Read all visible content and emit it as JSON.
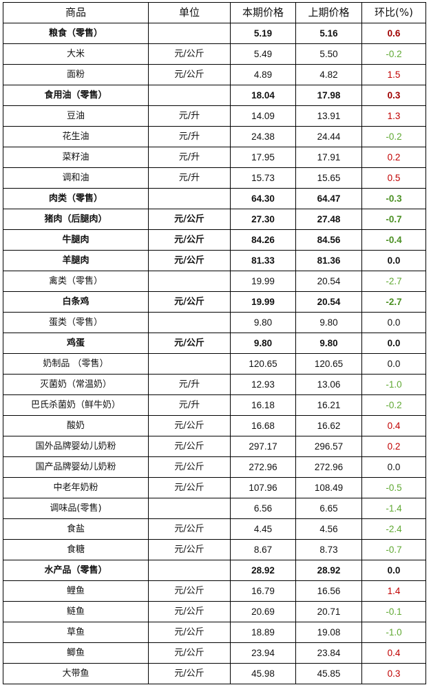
{
  "headers": [
    "商品",
    "单位",
    "本期价格",
    "上期价格",
    "环比(%)"
  ],
  "colors": {
    "up": "#c00000",
    "up_bold": "#a00000",
    "down": "#5fa832",
    "down_bold": "#4a8f22",
    "zero": "#111111"
  },
  "rows": [
    {
      "name": "粮食（零售）",
      "unit": "",
      "current": "5.19",
      "previous": "5.16",
      "change": "0.6",
      "bold": true
    },
    {
      "name": "大米",
      "unit": "元/公斤",
      "current": "5.49",
      "previous": "5.50",
      "change": "-0.2",
      "bold": false
    },
    {
      "name": "面粉",
      "unit": "元/公斤",
      "current": "4.89",
      "previous": "4.82",
      "change": "1.5",
      "bold": false
    },
    {
      "name": "食用油（零售）",
      "unit": "",
      "current": "18.04",
      "previous": "17.98",
      "change": "0.3",
      "bold": true
    },
    {
      "name": "豆油",
      "unit": "元/升",
      "current": "14.09",
      "previous": "13.91",
      "change": "1.3",
      "bold": false
    },
    {
      "name": "花生油",
      "unit": "元/升",
      "current": "24.38",
      "previous": "24.44",
      "change": "-0.2",
      "bold": false
    },
    {
      "name": "菜籽油",
      "unit": "元/升",
      "current": "17.95",
      "previous": "17.91",
      "change": "0.2",
      "bold": false
    },
    {
      "name": "调和油",
      "unit": "元/升",
      "current": "15.73",
      "previous": "15.65",
      "change": "0.5",
      "bold": false
    },
    {
      "name": "肉类（零售）",
      "unit": "",
      "current": "64.30",
      "previous": "64.47",
      "change": "-0.3",
      "bold": true
    },
    {
      "name": "猪肉（后腿肉）",
      "unit": "元/公斤",
      "current": "27.30",
      "previous": "27.48",
      "change": "-0.7",
      "bold": true
    },
    {
      "name": "牛腿肉",
      "unit": "元/公斤",
      "current": "84.26",
      "previous": "84.56",
      "change": "-0.4",
      "bold": true
    },
    {
      "name": "羊腿肉",
      "unit": "元/公斤",
      "current": "81.33",
      "previous": "81.36",
      "change": "0.0",
      "bold": true
    },
    {
      "name": "禽类（零售）",
      "unit": "",
      "current": "19.99",
      "previous": "20.54",
      "change": "-2.7",
      "bold": false
    },
    {
      "name": "白条鸡",
      "unit": "元/公斤",
      "current": "19.99",
      "previous": "20.54",
      "change": "-2.7",
      "bold": true
    },
    {
      "name": "蛋类（零售）",
      "unit": "",
      "current": "9.80",
      "previous": "9.80",
      "change": "0.0",
      "bold": false
    },
    {
      "name": "鸡蛋",
      "unit": "元/公斤",
      "current": "9.80",
      "previous": "9.80",
      "change": "0.0",
      "bold": true
    },
    {
      "name": "奶制品 （零售）",
      "unit": "",
      "current": "120.65",
      "previous": "120.65",
      "change": "0.0",
      "bold": false
    },
    {
      "name": "灭菌奶（常温奶）",
      "unit": "元/升",
      "current": "12.93",
      "previous": "13.06",
      "change": "-1.0",
      "bold": false
    },
    {
      "name": "巴氏杀菌奶（鲜牛奶）",
      "unit": "元/升",
      "current": "16.18",
      "previous": "16.21",
      "change": "-0.2",
      "bold": false
    },
    {
      "name": "酸奶",
      "unit": "元/公斤",
      "current": "16.68",
      "previous": "16.62",
      "change": "0.4",
      "bold": false
    },
    {
      "name": "国外品牌婴幼儿奶粉",
      "unit": "元/公斤",
      "current": "297.17",
      "previous": "296.57",
      "change": "0.2",
      "bold": false
    },
    {
      "name": "国产品牌婴幼儿奶粉",
      "unit": "元/公斤",
      "current": "272.96",
      "previous": "272.96",
      "change": "0.0",
      "bold": false
    },
    {
      "name": "中老年奶粉",
      "unit": "元/公斤",
      "current": "107.96",
      "previous": "108.49",
      "change": "-0.5",
      "bold": false
    },
    {
      "name": "调味品(零售)",
      "unit": "",
      "current": "6.56",
      "previous": "6.65",
      "change": "-1.4",
      "bold": false
    },
    {
      "name": "食盐",
      "unit": "元/公斤",
      "current": "4.45",
      "previous": "4.56",
      "change": "-2.4",
      "bold": false
    },
    {
      "name": "食糖",
      "unit": "元/公斤",
      "current": "8.67",
      "previous": "8.73",
      "change": "-0.7",
      "bold": false
    },
    {
      "name": "水产品（零售）",
      "unit": "",
      "current": "28.92",
      "previous": "28.92",
      "change": "0.0",
      "bold": true
    },
    {
      "name": "鲤鱼",
      "unit": "元/公斤",
      "current": "16.79",
      "previous": "16.56",
      "change": "1.4",
      "bold": false
    },
    {
      "name": "鲢鱼",
      "unit": "元/公斤",
      "current": "20.69",
      "previous": "20.71",
      "change": "-0.1",
      "bold": false
    },
    {
      "name": "草鱼",
      "unit": "元/公斤",
      "current": "18.89",
      "previous": "19.08",
      "change": "-1.0",
      "bold": false
    },
    {
      "name": "鲫鱼",
      "unit": "元/公斤",
      "current": "23.94",
      "previous": "23.84",
      "change": "0.4",
      "bold": false
    },
    {
      "name": "大带鱼",
      "unit": "元/公斤",
      "current": "45.98",
      "previous": "45.85",
      "change": "0.3",
      "bold": false
    }
  ]
}
